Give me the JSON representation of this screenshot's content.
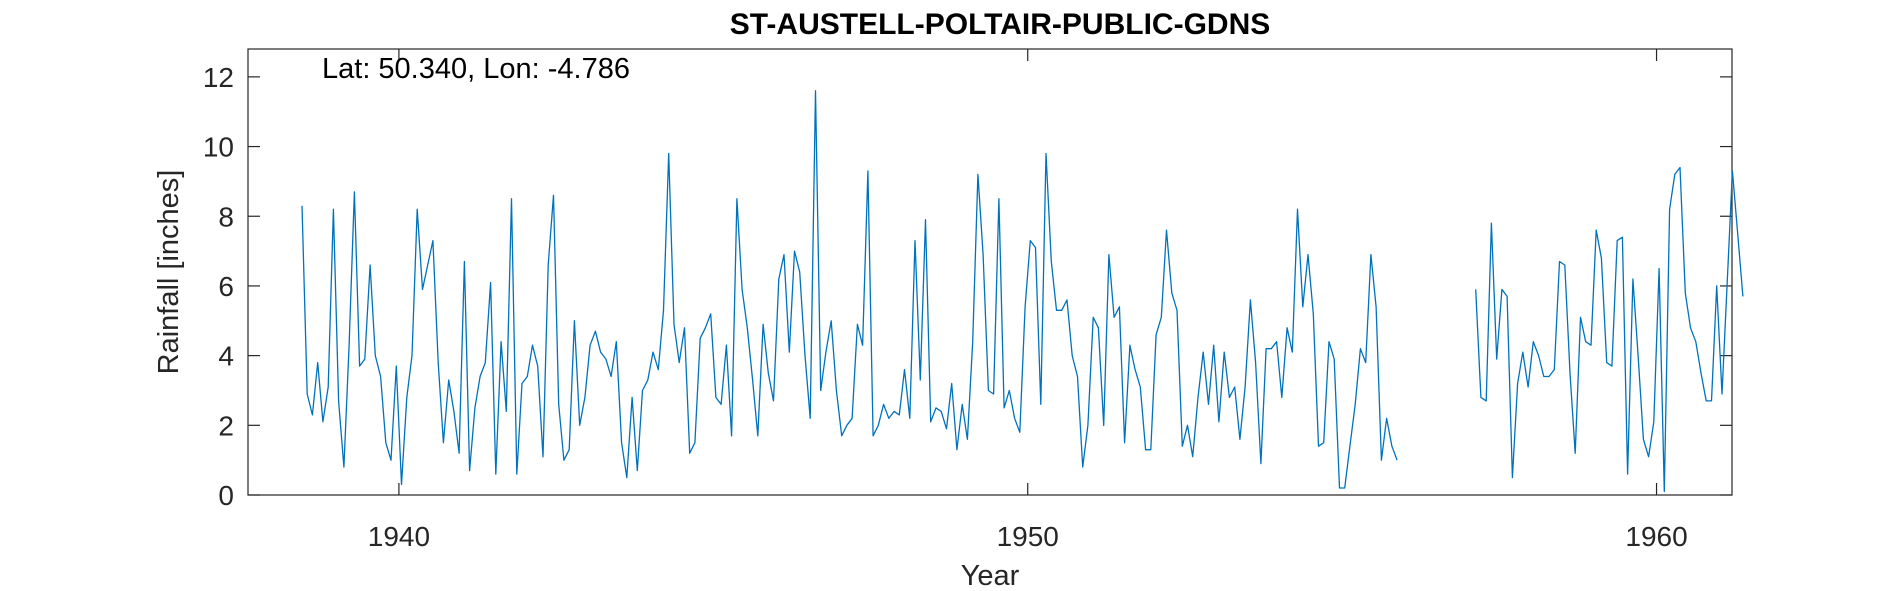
{
  "chart_data": {
    "type": "line",
    "title": "ST-AUSTELL-POLTAIR-PUBLIC-GDNS",
    "annotation": "Lat: 50.340, Lon: -4.786",
    "xlabel": "Year",
    "ylabel": "Rainfall [inches]",
    "xlim": [
      1937.6,
      1961.2
    ],
    "ylim": [
      0,
      12.8
    ],
    "xticks": [
      1940,
      1950,
      1960
    ],
    "xtick_labels": [
      "1940",
      "1950",
      "1960"
    ],
    "yticks": [
      0,
      2,
      4,
      6,
      8,
      10,
      12
    ],
    "ytick_labels": [
      "0",
      "2",
      "4",
      "6",
      "8",
      "10",
      "12"
    ],
    "grid": false,
    "box": true,
    "line_color": "#0072BD",
    "series": [
      {
        "start": 1938.458,
        "step": 0.08333,
        "values": [
          8.3,
          2.9,
          2.3,
          3.8,
          2.1,
          3.1,
          8.2,
          2.7,
          0.8,
          4.3,
          8.7,
          3.7,
          3.9,
          6.6,
          4.0,
          3.4,
          1.5,
          1.0,
          3.7,
          0.3,
          2.8,
          4.0,
          8.2,
          5.9,
          6.6,
          7.3,
          3.8,
          1.5,
          3.3,
          2.4,
          1.2,
          6.7,
          0.7,
          2.5,
          3.4,
          3.8,
          6.1,
          0.6,
          4.4,
          2.4,
          8.5,
          0.6,
          3.2,
          3.4,
          4.3,
          3.7,
          1.1,
          6.6,
          8.6,
          2.6,
          1.0,
          1.3,
          5.0,
          2.0,
          2.8,
          4.3,
          4.7,
          4.1,
          3.9,
          3.4,
          4.4,
          1.5,
          0.5,
          2.8,
          0.7,
          3.0,
          3.3,
          4.1,
          3.6,
          5.3,
          9.8,
          4.9,
          3.8,
          4.8,
          1.2,
          1.5,
          4.5,
          4.8,
          5.2,
          2.8,
          2.6,
          4.3,
          1.7,
          8.5,
          5.9,
          4.8,
          3.3,
          1.7,
          4.9,
          3.5,
          2.7,
          6.2,
          6.9,
          4.1,
          7.0,
          6.4,
          4.0,
          2.2,
          11.6,
          3.0,
          4.1,
          5.0,
          3.0,
          1.7,
          2.0,
          2.2,
          4.9,
          4.3,
          9.3,
          1.7,
          2.0,
          2.6,
          2.2,
          2.4,
          2.3,
          3.6,
          2.2,
          7.3,
          3.3,
          7.9,
          2.1,
          2.5,
          2.4,
          1.9,
          3.2,
          1.3,
          2.6,
          1.6,
          4.4,
          9.2,
          6.9,
          3.0,
          2.9,
          8.5,
          2.5,
          3.0,
          2.2,
          1.8,
          5.4,
          7.3,
          7.1,
          2.6,
          9.8,
          6.7,
          5.3,
          5.3,
          5.6,
          4.0,
          3.4,
          0.8,
          2.0,
          5.1,
          4.8,
          2.0,
          6.9,
          5.1,
          5.4,
          1.5,
          4.3,
          3.6,
          3.1,
          1.3,
          1.3,
          4.6,
          5.1,
          7.6,
          5.8,
          5.3,
          1.4,
          2.0,
          1.1,
          2.8,
          4.1,
          2.6,
          4.3,
          2.1,
          4.1,
          2.8,
          3.1,
          1.6,
          3.1,
          5.6,
          3.8,
          0.9,
          4.2,
          4.2,
          4.4,
          2.8,
          4.8,
          4.1,
          8.2,
          5.4,
          6.9,
          5.2,
          1.4,
          1.5,
          4.4,
          3.9,
          0.2,
          0.2,
          1.4,
          2.6,
          4.2,
          3.8,
          6.9,
          5.4,
          1.0,
          2.2,
          1.4,
          1.0,
          null,
          null,
          null,
          null,
          null,
          null,
          null,
          null,
          null,
          null,
          null,
          null,
          null,
          null,
          5.9,
          2.8,
          2.7,
          7.8,
          3.9,
          5.9,
          5.7,
          0.5,
          3.2,
          4.1,
          3.1,
          4.4,
          4.0,
          3.4,
          3.4,
          3.6,
          6.7,
          6.6,
          3.5,
          1.2,
          5.1,
          4.4,
          4.3,
          7.6,
          6.8,
          3.8,
          3.7,
          7.3,
          7.4,
          0.6,
          6.2,
          4.0,
          1.6,
          1.1,
          2.1,
          6.5,
          0.1,
          8.2,
          9.2,
          9.4,
          5.8,
          4.8,
          4.4,
          3.5,
          2.7,
          2.7,
          6.0,
          2.9,
          6.1,
          9.3,
          7.5,
          5.7
        ]
      }
    ]
  }
}
